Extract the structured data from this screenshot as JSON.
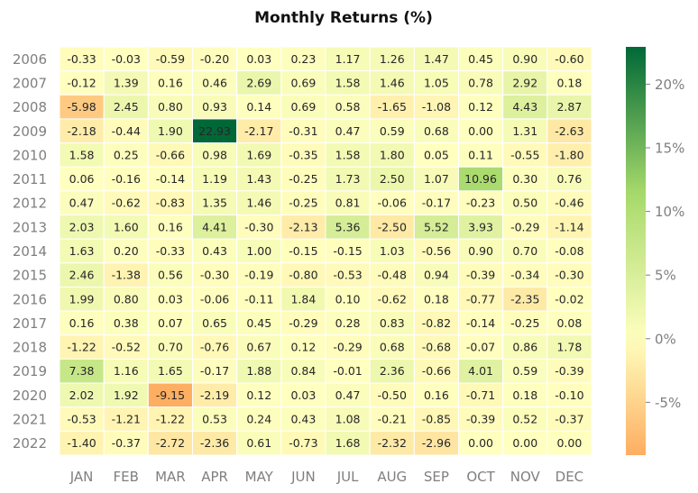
{
  "chart_data": {
    "type": "heatmap",
    "title": "Monthly Returns (%)",
    "xlabel": "",
    "ylabel": "",
    "columns": [
      "JAN",
      "FEB",
      "MAR",
      "APR",
      "MAY",
      "JUN",
      "JUL",
      "AUG",
      "SEP",
      "OCT",
      "NOV",
      "DEC"
    ],
    "rows": [
      "2006",
      "2007",
      "2008",
      "2009",
      "2010",
      "2011",
      "2012",
      "2013",
      "2014",
      "2015",
      "2016",
      "2017",
      "2018",
      "2019",
      "2020",
      "2021",
      "2022"
    ],
    "values": [
      [
        "-0.33",
        "-0.03",
        "-0.59",
        "-0.20",
        "0.03",
        "0.23",
        "1.17",
        "1.26",
        "1.47",
        "0.45",
        "0.90",
        "-0.60"
      ],
      [
        "-0.12",
        "1.39",
        "0.16",
        "0.46",
        "2.69",
        "0.69",
        "1.58",
        "1.46",
        "1.05",
        "0.78",
        "2.92",
        "0.18"
      ],
      [
        "-5.98",
        "2.45",
        "0.80",
        "0.93",
        "0.14",
        "0.69",
        "0.58",
        "-1.65",
        "-1.08",
        "0.12",
        "4.43",
        "2.87"
      ],
      [
        "-2.18",
        "-0.44",
        "1.90",
        "22.93",
        "-2.17",
        "-0.31",
        "0.47",
        "0.59",
        "0.68",
        "0.00",
        "1.31",
        "-2.63"
      ],
      [
        "1.58",
        "0.25",
        "-0.66",
        "0.98",
        "1.69",
        "-0.35",
        "1.58",
        "1.80",
        "0.05",
        "0.11",
        "-0.55",
        "-1.80"
      ],
      [
        "0.06",
        "-0.16",
        "-0.14",
        "1.19",
        "1.43",
        "-0.25",
        "1.73",
        "2.50",
        "1.07",
        "10.96",
        "0.30",
        "0.76"
      ],
      [
        "0.47",
        "-0.62",
        "-0.83",
        "1.35",
        "1.46",
        "-0.25",
        "0.81",
        "-0.06",
        "-0.17",
        "-0.23",
        "0.50",
        "-0.46"
      ],
      [
        "2.03",
        "1.60",
        "0.16",
        "4.41",
        "-0.30",
        "-2.13",
        "5.36",
        "-2.50",
        "5.52",
        "3.93",
        "-0.29",
        "-1.14"
      ],
      [
        "1.63",
        "0.20",
        "-0.33",
        "0.43",
        "1.00",
        "-0.15",
        "-0.15",
        "1.03",
        "-0.56",
        "0.90",
        "0.70",
        "-0.08"
      ],
      [
        "2.46",
        "-1.38",
        "0.56",
        "-0.30",
        "-0.19",
        "-0.80",
        "-0.53",
        "-0.48",
        "0.94",
        "-0.39",
        "-0.34",
        "-0.30"
      ],
      [
        "1.99",
        "0.80",
        "0.03",
        "-0.06",
        "-0.11",
        "1.84",
        "0.10",
        "-0.62",
        "0.18",
        "-0.77",
        "-2.35",
        "-0.02"
      ],
      [
        "0.16",
        "0.38",
        "0.07",
        "0.65",
        "0.45",
        "-0.29",
        "0.28",
        "0.83",
        "-0.82",
        "-0.14",
        "-0.25",
        "0.08"
      ],
      [
        "-1.22",
        "-0.52",
        "0.70",
        "-0.76",
        "0.67",
        "0.12",
        "-0.29",
        "0.68",
        "-0.68",
        "-0.07",
        "0.86",
        "1.78"
      ],
      [
        "7.38",
        "1.16",
        "1.65",
        "-0.17",
        "1.88",
        "0.84",
        "-0.01",
        "2.36",
        "-0.66",
        "4.01",
        "0.59",
        "-0.39"
      ],
      [
        "2.02",
        "1.92",
        "-9.15",
        "-2.19",
        "0.12",
        "0.03",
        "0.47",
        "-0.50",
        "0.16",
        "-0.71",
        "0.18",
        "-0.10"
      ],
      [
        "-0.53",
        "-1.21",
        "-1.22",
        "0.53",
        "0.24",
        "0.43",
        "1.08",
        "-0.21",
        "-0.85",
        "-0.39",
        "0.52",
        "-0.37"
      ],
      [
        "-1.40",
        "-0.37",
        "-2.72",
        "-2.36",
        "0.61",
        "-0.73",
        "1.68",
        "-2.32",
        "-2.96",
        "0.00",
        "0.00",
        "0.00"
      ]
    ],
    "color_range": [
      -9.15,
      22.93
    ],
    "colorbar_ticks": [
      -5,
      0,
      5,
      10,
      15,
      20
    ],
    "colorbar_tick_labels": [
      "-5%",
      "0%",
      "5%",
      "10%",
      "15%",
      "20%"
    ],
    "colormap": "RdYlGn",
    "grid": false,
    "legend": "colorbar-right"
  }
}
